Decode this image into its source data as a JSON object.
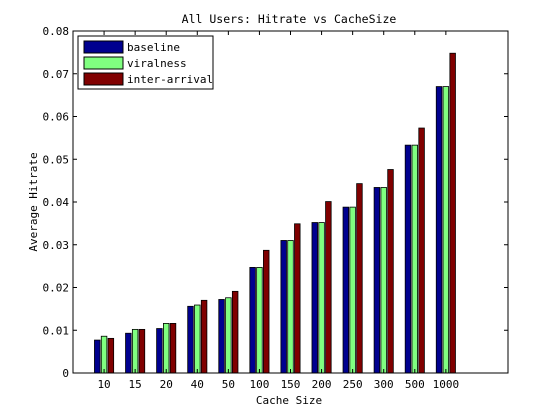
{
  "chart_data": {
    "type": "bar",
    "title": "All Users: Hitrate vs CacheSize",
    "xlabel": "Cache Size",
    "ylabel": "Average Hitrate",
    "ylim": [
      0,
      0.08
    ],
    "yticks": [
      "0",
      "0.01",
      "0.02",
      "0.03",
      "0.04",
      "0.05",
      "0.06",
      "0.07",
      "0.08"
    ],
    "categories": [
      "10",
      "15",
      "20",
      "40",
      "50",
      "100",
      "150",
      "200",
      "250",
      "300",
      "500",
      "1000"
    ],
    "grid": false,
    "legend_position": "top-left",
    "series": [
      {
        "name": "baseline",
        "color": "#00008f",
        "values": [
          0.0077,
          0.0093,
          0.0104,
          0.0156,
          0.0172,
          0.0247,
          0.031,
          0.0352,
          0.0388,
          0.0434,
          0.0533,
          0.067
        ]
      },
      {
        "name": "viralness",
        "color": "#80ff80",
        "values": [
          0.0086,
          0.0102,
          0.0116,
          0.0159,
          0.0176,
          0.0247,
          0.031,
          0.0352,
          0.0388,
          0.0434,
          0.0533,
          0.067
        ]
      },
      {
        "name": "inter-arrival",
        "color": "#800000",
        "values": [
          0.0081,
          0.0102,
          0.0116,
          0.017,
          0.0191,
          0.0287,
          0.0349,
          0.0401,
          0.0443,
          0.0476,
          0.0573,
          0.0748
        ]
      }
    ]
  }
}
